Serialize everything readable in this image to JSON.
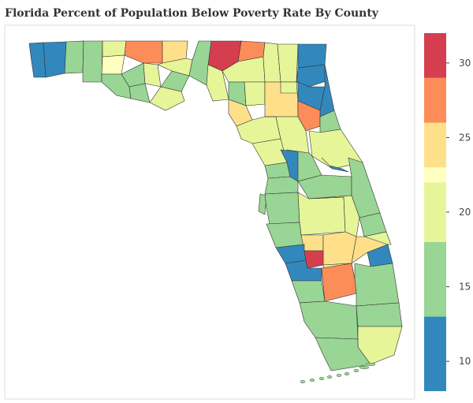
{
  "chart_data": {
    "type": "choropleth",
    "title": "Florida Percent of Population Below Poverty Rate By County",
    "colorbar": {
      "min": 8,
      "max": 32,
      "ticks": [
        10,
        15,
        20,
        25,
        30
      ],
      "bins": [
        {
          "from": 8,
          "to": 13,
          "color": "#3288bd"
        },
        {
          "from": 13,
          "to": 18,
          "color": "#99d594"
        },
        {
          "from": 18,
          "to": 22,
          "color": "#e6f598"
        },
        {
          "from": 22,
          "to": 23,
          "color": "#ffffbf"
        },
        {
          "from": 23,
          "to": 26,
          "color": "#fee08b"
        },
        {
          "from": 26,
          "to": 29,
          "color": "#fc8d59"
        },
        {
          "from": 29,
          "to": 32,
          "color": "#d53e4f"
        }
      ]
    },
    "regions": [
      {
        "id": "escambia",
        "value": 12
      },
      {
        "id": "santa-rosa",
        "value": 11
      },
      {
        "id": "okaloosa",
        "value": 14
      },
      {
        "id": "walton",
        "value": 17
      },
      {
        "id": "holmes",
        "value": 20
      },
      {
        "id": "washington",
        "value": 22
      },
      {
        "id": "jackson",
        "value": 26
      },
      {
        "id": "bay",
        "value": 15
      },
      {
        "id": "calhoun",
        "value": 16
      },
      {
        "id": "gulf",
        "value": 15
      },
      {
        "id": "liberty",
        "value": 18
      },
      {
        "id": "gadsden",
        "value": 24
      },
      {
        "id": "franklin",
        "value": 20
      },
      {
        "id": "wakulla",
        "value": 16
      },
      {
        "id": "leon",
        "value": 21
      },
      {
        "id": "jefferson",
        "value": 16
      },
      {
        "id": "madison",
        "value": 29
      },
      {
        "id": "hamilton",
        "value": 27
      },
      {
        "id": "taylor",
        "value": 19
      },
      {
        "id": "suwannee",
        "value": 20
      },
      {
        "id": "columbia",
        "value": 19
      },
      {
        "id": "baker",
        "value": 20
      },
      {
        "id": "nassau",
        "value": 11
      },
      {
        "id": "duval",
        "value": 11
      },
      {
        "id": "lafayette",
        "value": 17
      },
      {
        "id": "dixie",
        "value": 25
      },
      {
        "id": "gilchrist",
        "value": 20
      },
      {
        "id": "alachua",
        "value": 24
      },
      {
        "id": "union",
        "value": 21
      },
      {
        "id": "bradford",
        "value": 20
      },
      {
        "id": "clay",
        "value": 11
      },
      {
        "id": "st-johns",
        "value": 11
      },
      {
        "id": "putnam",
        "value": 28
      },
      {
        "id": "flagler",
        "value": 15
      },
      {
        "id": "levy",
        "value": 21
      },
      {
        "id": "marion",
        "value": 19
      },
      {
        "id": "volusia",
        "value": 19
      },
      {
        "id": "citrus",
        "value": 18
      },
      {
        "id": "lake",
        "value": 15
      },
      {
        "id": "seminole",
        "value": 11
      },
      {
        "id": "hernando",
        "value": 15
      },
      {
        "id": "sumter",
        "value": 11
      },
      {
        "id": "orange",
        "value": 16
      },
      {
        "id": "brevard",
        "value": 15
      },
      {
        "id": "pasco",
        "value": 15
      },
      {
        "id": "pinellas",
        "value": 14
      },
      {
        "id": "hillsborough",
        "value": 17
      },
      {
        "id": "polk",
        "value": 19
      },
      {
        "id": "osceola",
        "value": 19
      },
      {
        "id": "indian-river",
        "value": 15
      },
      {
        "id": "manatee",
        "value": 15
      },
      {
        "id": "hardee",
        "value": 24
      },
      {
        "id": "highlands",
        "value": 23
      },
      {
        "id": "okeechobee",
        "value": 23
      },
      {
        "id": "st-lucie",
        "value": 19
      },
      {
        "id": "sarasota",
        "value": 11
      },
      {
        "id": "desoto",
        "value": 29
      },
      {
        "id": "martin",
        "value": 12
      },
      {
        "id": "charlotte",
        "value": 12
      },
      {
        "id": "glades",
        "value": 20
      },
      {
        "id": "lee",
        "value": 15
      },
      {
        "id": "hendry",
        "value": 27
      },
      {
        "id": "palm-beach",
        "value": 16
      },
      {
        "id": "collier",
        "value": 15
      },
      {
        "id": "broward",
        "value": 15
      },
      {
        "id": "miami-dade",
        "value": 20
      },
      {
        "id": "monroe",
        "value": 14
      }
    ]
  }
}
